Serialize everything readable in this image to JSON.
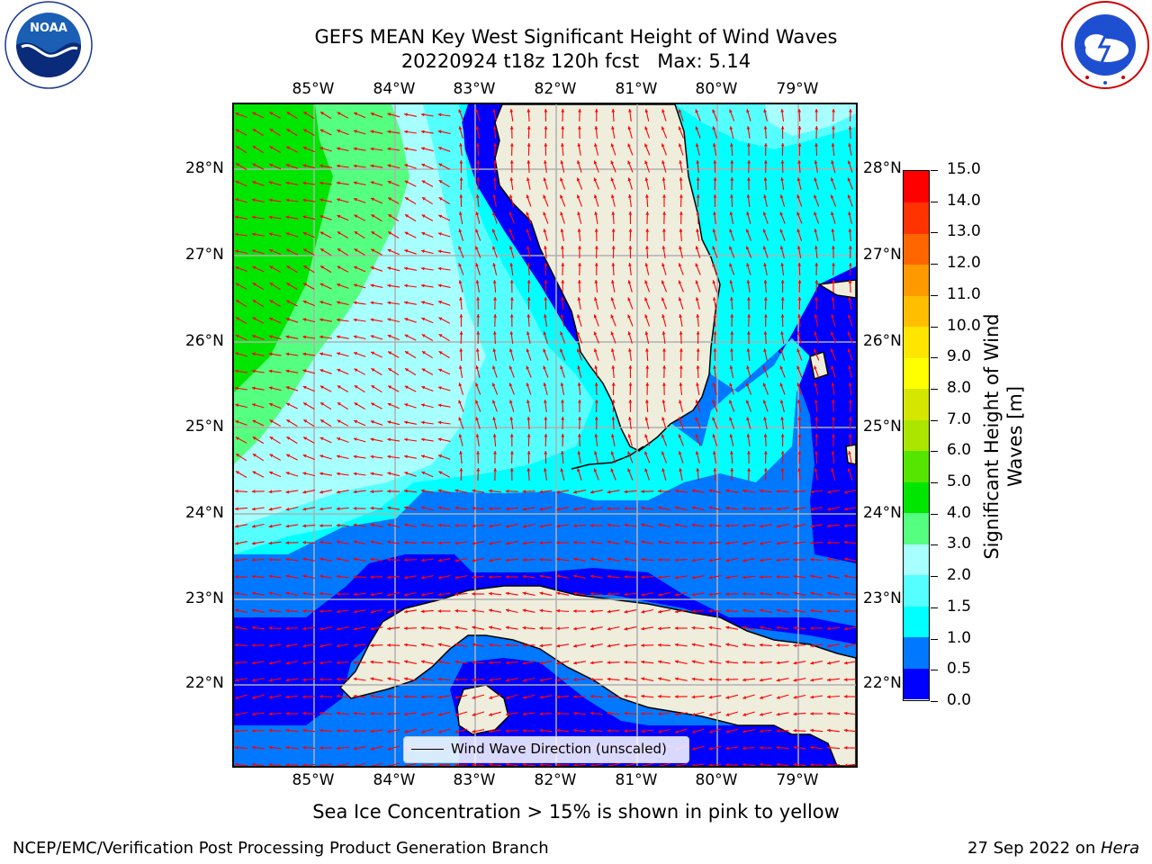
{
  "title": {
    "line1": "GEFS MEAN Key West Significant Height of Wind Waves",
    "line2": "20220924 t18z 120h fcst   Max: 5.14"
  },
  "map": {
    "lon_labels": [
      "85°W",
      "84°W",
      "83°W",
      "82°W",
      "81°W",
      "80°W",
      "79°W"
    ],
    "lat_labels": [
      "28°N",
      "27°N",
      "26°N",
      "25°N",
      "24°N",
      "23°N",
      "22°N"
    ],
    "legend_label": "Wind Wave Direction (unscaled)",
    "land_color": "#efeddc",
    "arrow_color": "#ff0000",
    "grid_color": "#b0b0b0"
  },
  "colorbar": {
    "title_line1": "Significant Height of Wind",
    "title_line2": "Waves [m]",
    "levels": [
      "0.0",
      "0.5",
      "1.0",
      "1.5",
      "2.0",
      "3.0",
      "4.0",
      "5.0",
      "6.0",
      "7.0",
      "8.0",
      "9.0",
      "10.0",
      "11.0",
      "12.0",
      "13.0",
      "14.0",
      "15.0"
    ],
    "colors": [
      "#0000ff",
      "#0078ff",
      "#00ffff",
      "#55ffff",
      "#a8ffff",
      "#55ff80",
      "#00e600",
      "#55e600",
      "#aae600",
      "#d5e600",
      "#ffff00",
      "#ffe600",
      "#ffbf00",
      "#ff9900",
      "#ff6600",
      "#ff3300",
      "#ff0000"
    ]
  },
  "logos": {
    "noaa_text": "NOAA",
    "noaa_ring": "NATIONAL OCEANIC AND ATMOSPHERIC ADMINISTRATION · U.S. DEPARTMENT OF COMMERCE",
    "nws_ring": "NATIONAL WEATHER SERVICE"
  },
  "footer": {
    "note": "Sea Ice Concentration > 15% is shown in pink to yellow",
    "left": "NCEP/EMC/Verification Post Processing Product Generation Branch",
    "right_date": "27 Sep 2022 on ",
    "right_host": "Hera"
  }
}
